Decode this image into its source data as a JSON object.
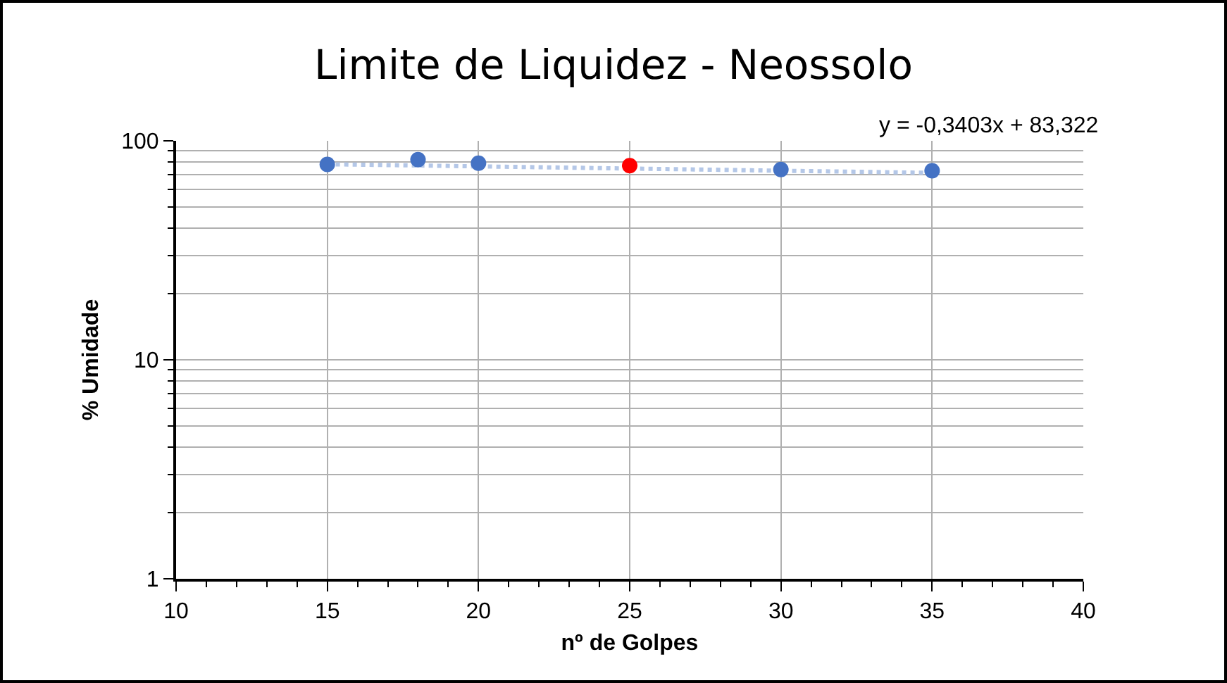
{
  "chart_data": {
    "type": "scatter",
    "title": "Limite de Liquidez - Neossolo",
    "xlabel": "nº de Golpes",
    "ylabel": "% Umidade",
    "x": [
      15,
      18,
      20,
      25,
      30,
      35
    ],
    "series": [
      {
        "marker": "circle",
        "colors": [
          "#4472c4",
          "#4472c4",
          "#4472c4",
          "#ff0000",
          "#4472c4",
          "#4472c4"
        ],
        "values": [
          78,
          82,
          79,
          77,
          74,
          73
        ]
      },
      {
        "type": "line",
        "x": [
          15,
          35
        ],
        "color": "#b4c7e7",
        "values": [
          78.2,
          71.4
        ],
        "line_style": "dotted",
        "marker": "none"
      }
    ],
    "annotations": [
      "y = -0,3403x + 83,322"
    ],
    "log": "y",
    "xlim": [
      10,
      40
    ],
    "xticks": [
      10,
      15,
      20,
      25,
      30,
      35,
      40
    ],
    "ylim": [
      1,
      100
    ],
    "yticks": [
      1,
      10,
      100
    ],
    "grid": true
  }
}
